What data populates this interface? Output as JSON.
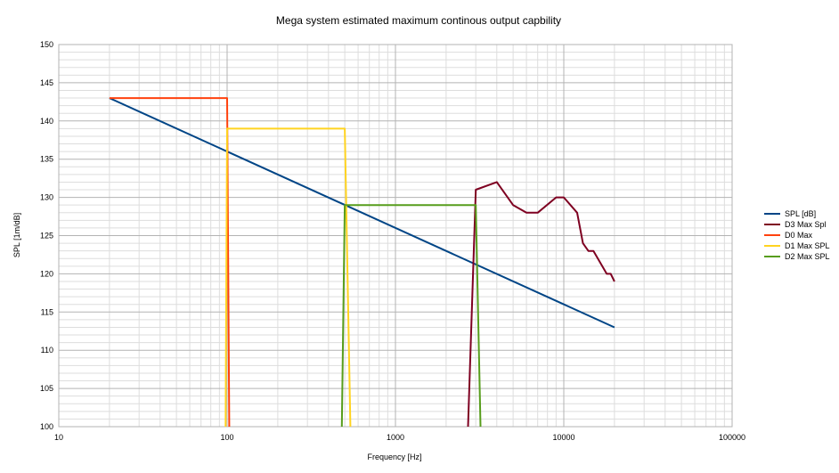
{
  "chart_data": {
    "type": "line",
    "title": "Mega system estimated maximum continous output capbility",
    "xlabel": "Frequency [Hz]",
    "ylabel": "SPL [1m/dB]",
    "xscale": "log",
    "xlim": [
      10,
      100000
    ],
    "ylim": [
      100,
      150
    ],
    "xticks": [
      10,
      100,
      1000,
      10000,
      100000
    ],
    "xtick_labels": [
      "10",
      "100",
      "1000",
      "10000",
      "100000"
    ],
    "yticks": [
      100,
      105,
      110,
      115,
      120,
      125,
      130,
      135,
      140,
      145,
      150
    ],
    "ytick_labels": [
      "100",
      "105",
      "110",
      "115",
      "120",
      "125",
      "130",
      "135",
      "140",
      "145",
      "150"
    ],
    "grid": true,
    "legend_position": "right",
    "series": [
      {
        "name": "SPL [dB]",
        "color": "#004586",
        "points": [
          [
            20,
            143
          ],
          [
            20000,
            113
          ]
        ]
      },
      {
        "name": "D3 Max Spl",
        "color": "#7e0021",
        "points": [
          [
            2700,
            100
          ],
          [
            3000,
            131
          ],
          [
            4000,
            132
          ],
          [
            5000,
            129
          ],
          [
            6000,
            128
          ],
          [
            7000,
            128
          ],
          [
            9000,
            130
          ],
          [
            10000,
            130
          ],
          [
            12000,
            128
          ],
          [
            13000,
            124
          ],
          [
            14000,
            123
          ],
          [
            15000,
            123
          ],
          [
            18000,
            120
          ],
          [
            19000,
            120
          ],
          [
            20000,
            119
          ]
        ]
      },
      {
        "name": "D0 Max",
        "color": "#ff420e",
        "points": [
          [
            20,
            143
          ],
          [
            100,
            143
          ],
          [
            103,
            100
          ]
        ]
      },
      {
        "name": "D1 Max SPL",
        "color": "#ffd320",
        "points": [
          [
            98,
            100
          ],
          [
            100,
            139
          ],
          [
            500,
            139
          ],
          [
            540,
            100
          ]
        ]
      },
      {
        "name": "D2 Max SPL",
        "color": "#579d1c",
        "points": [
          [
            480,
            100
          ],
          [
            500,
            129
          ],
          [
            3000,
            129
          ],
          [
            3200,
            100
          ]
        ]
      }
    ]
  }
}
